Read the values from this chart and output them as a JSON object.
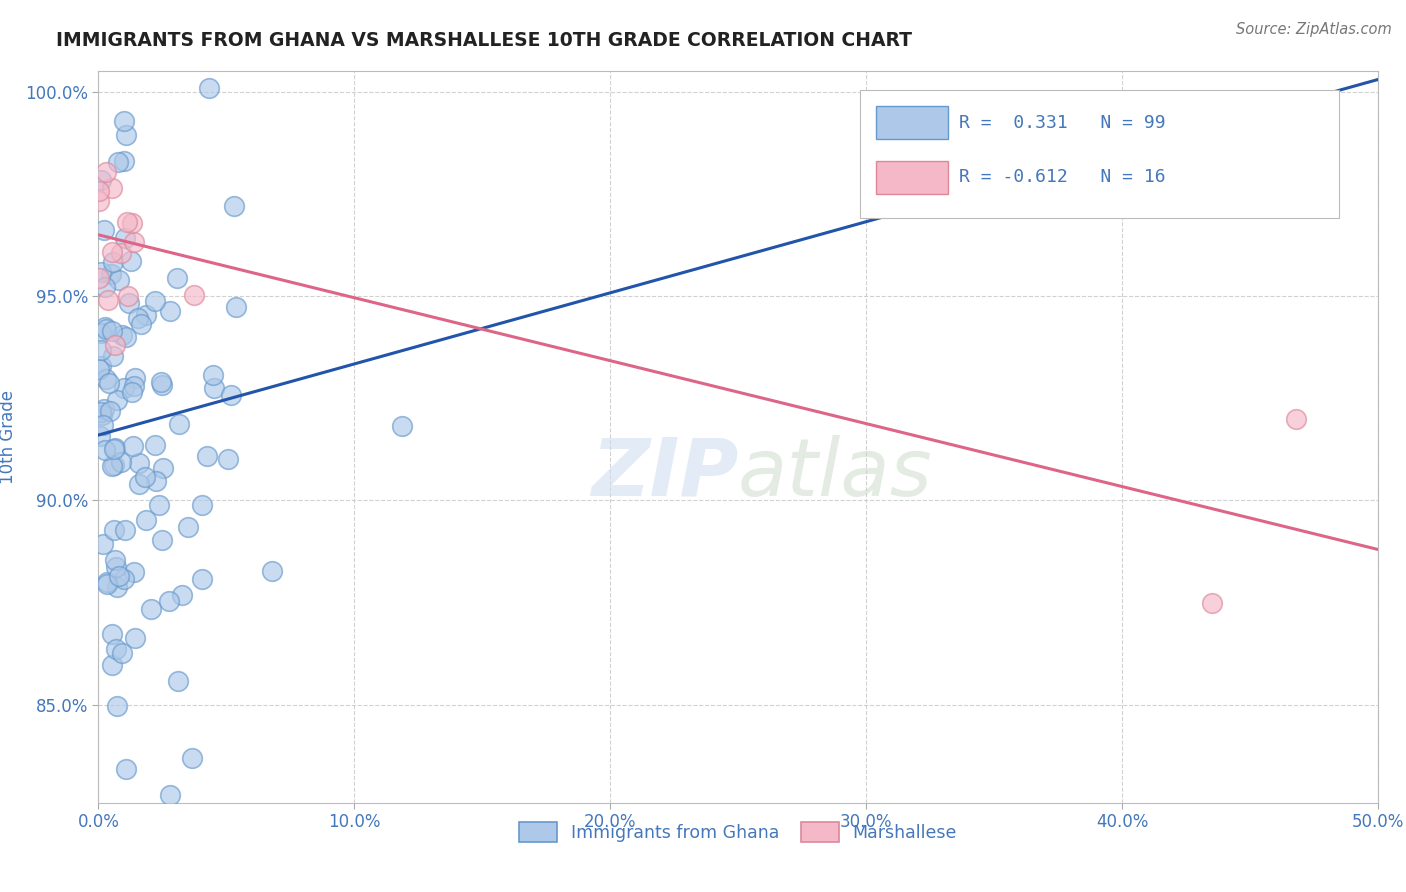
{
  "title": "IMMIGRANTS FROM GHANA VS MARSHALLESE 10TH GRADE CORRELATION CHART",
  "source": "Source: ZipAtlas.com",
  "ylabel": "10th Grade",
  "xlim": [
    0.0,
    0.5
  ],
  "ylim": [
    0.826,
    1.005
  ],
  "xticks": [
    0.0,
    0.1,
    0.2,
    0.3,
    0.4,
    0.5
  ],
  "xticklabels": [
    "0.0%",
    "10.0%",
    "20.0%",
    "30.0%",
    "40.0%",
    "50.0%"
  ],
  "yticks": [
    0.85,
    0.9,
    0.95,
    1.0
  ],
  "yticklabels": [
    "85.0%",
    "90.0%",
    "95.0%",
    "100.0%"
  ],
  "ghana_R": 0.331,
  "ghana_N": 99,
  "marshallese_R": -0.612,
  "marshallese_N": 16,
  "ghana_color": "#adc8e8",
  "ghana_edge_color": "#6699cc",
  "marshallese_color": "#f4b8c8",
  "marshallese_edge_color": "#dd8899",
  "trend_ghana_color": "#2255aa",
  "trend_marshallese_color": "#dd6688",
  "background_color": "#ffffff",
  "grid_color": "#cccccc",
  "axis_color": "#4477bb",
  "legend_ghana_label": "Immigrants from Ghana",
  "legend_marshallese_label": "Marshallese",
  "ghana_trend_x0": 0.0,
  "ghana_trend_y0": 0.916,
  "ghana_trend_x1": 0.5,
  "ghana_trend_y1": 1.003,
  "marsh_trend_x0": 0.0,
  "marsh_trend_y0": 0.965,
  "marsh_trend_x1": 0.5,
  "marsh_trend_y1": 0.888
}
